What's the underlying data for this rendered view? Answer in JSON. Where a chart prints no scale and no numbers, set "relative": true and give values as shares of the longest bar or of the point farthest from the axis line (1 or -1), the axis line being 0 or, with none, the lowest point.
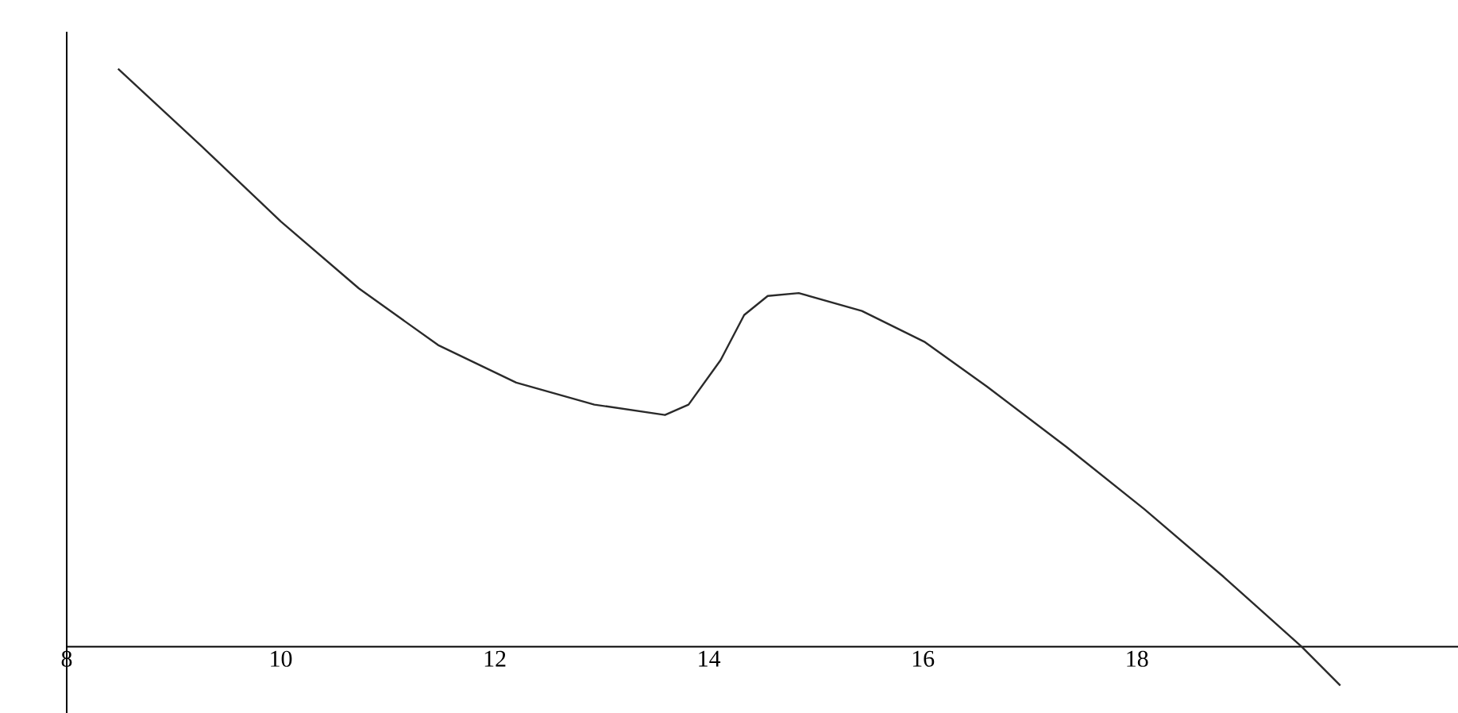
{
  "chart_data": {
    "type": "line",
    "relative": true,
    "color": "#2a2a2a",
    "xlim": [
      8,
      21
    ],
    "xticks": [
      8,
      10,
      12,
      14,
      16,
      18
    ],
    "grid": false,
    "marker": "none",
    "line_style": "solid",
    "tick_labels": "x",
    "x": [
      8.48,
      9.26,
      10.0,
      10.73,
      11.47,
      12.2,
      12.93,
      13.59,
      13.81,
      14.11,
      14.33,
      14.55,
      14.84,
      15.43,
      16.02,
      16.6,
      17.34,
      18.07,
      18.81,
      19.54,
      19.9
    ],
    "values": [
      1.0,
      0.866,
      0.736,
      0.62,
      0.522,
      0.457,
      0.419,
      0.401,
      0.419,
      0.496,
      0.574,
      0.607,
      0.612,
      0.581,
      0.527,
      0.45,
      0.346,
      0.238,
      0.121,
      0,
      -0.067
    ]
  }
}
